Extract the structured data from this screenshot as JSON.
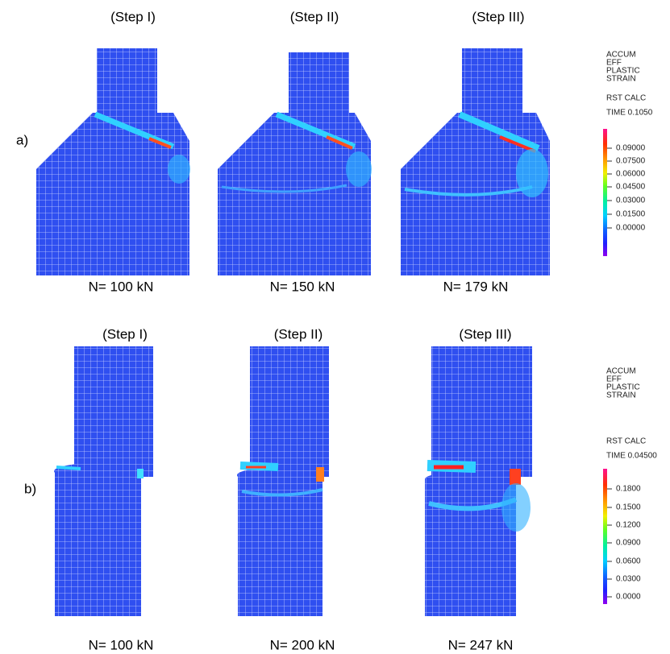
{
  "rows": [
    {
      "label": "a)",
      "steps": [
        {
          "title": "(Step I)",
          "load": "N= 100 kN"
        },
        {
          "title": "(Step II)",
          "load": "N= 150 kN"
        },
        {
          "title": "(Step III)",
          "load": "N= 179 kN"
        }
      ],
      "legend": {
        "title": [
          "ACCUM",
          "EFF",
          "PLASTIC",
          "STRAIN"
        ],
        "calc": "RST CALC",
        "time": "TIME 0.1050",
        "ticks": [
          "0.09000",
          "0.07500",
          "0.06000",
          "0.04500",
          "0.03000",
          "0.01500",
          "0.00000"
        ]
      }
    },
    {
      "label": "b)",
      "steps": [
        {
          "title": "(Step I)",
          "load": "N= 100 kN"
        },
        {
          "title": "(Step II)",
          "load": "N= 200 kN"
        },
        {
          "title": "(Step III)",
          "load": "N= 247 kN"
        }
      ],
      "legend": {
        "title": [
          "ACCUM",
          "EFF",
          "PLASTIC",
          "STRAIN"
        ],
        "calc": "RST CALC",
        "time": "TIME 0.04500",
        "ticks": [
          "0.1800",
          "0.1500",
          "0.1200",
          "0.0900",
          "0.0600",
          "0.0300",
          "0.0000"
        ]
      }
    }
  ]
}
